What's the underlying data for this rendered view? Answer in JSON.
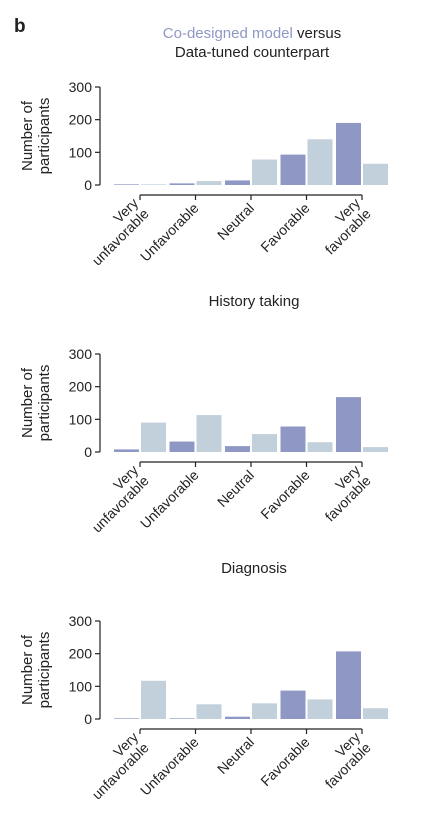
{
  "panel_label": "b",
  "legend_joiner": "versus",
  "chart_data": [
    {
      "type": "bar",
      "ylabel": "Number of participants",
      "xlabel": "History taking",
      "categories": [
        "Very unfavorable",
        "Unfavorable",
        "Neutral",
        "Favorable",
        "Very favorable"
      ],
      "series": [
        {
          "name": "Co-designed model",
          "color": "#8f97c4",
          "values": [
            2,
            5,
            14,
            93,
            190
          ]
        },
        {
          "name": "Data-tuned counterpart",
          "color": "#c2d0dc",
          "values": [
            2,
            12,
            78,
            140,
            65
          ]
        }
      ],
      "ylim": [
        0,
        300
      ],
      "yticks": [
        0,
        100,
        200,
        300
      ]
    },
    {
      "type": "bar",
      "ylabel": "Number of participants",
      "xlabel": "Diagnosis",
      "categories": [
        "Very unfavorable",
        "Unfavorable",
        "Neutral",
        "Favorable",
        "Very favorable"
      ],
      "series": [
        {
          "color": "#8f97c4",
          "values": [
            8,
            32,
            18,
            78,
            168
          ]
        },
        {
          "color": "#c2d0dc",
          "values": [
            90,
            113,
            55,
            30,
            15
          ]
        }
      ],
      "ylim": [
        0,
        300
      ],
      "yticks": [
        0,
        100,
        200,
        300
      ]
    },
    {
      "type": "bar",
      "ylabel": "Number of participants",
      "categories": [
        "Very unfavorable",
        "Unfavorable",
        "Neutral",
        "Favorable",
        "Very favorable"
      ],
      "series": [
        {
          "color": "#8f97c4",
          "values": [
            2,
            2,
            7,
            87,
            207
          ]
        },
        {
          "color": "#c2d0dc",
          "values": [
            117,
            45,
            48,
            60,
            33
          ]
        }
      ],
      "ylim": [
        0,
        300
      ],
      "yticks": [
        0,
        100,
        200,
        300
      ]
    }
  ]
}
